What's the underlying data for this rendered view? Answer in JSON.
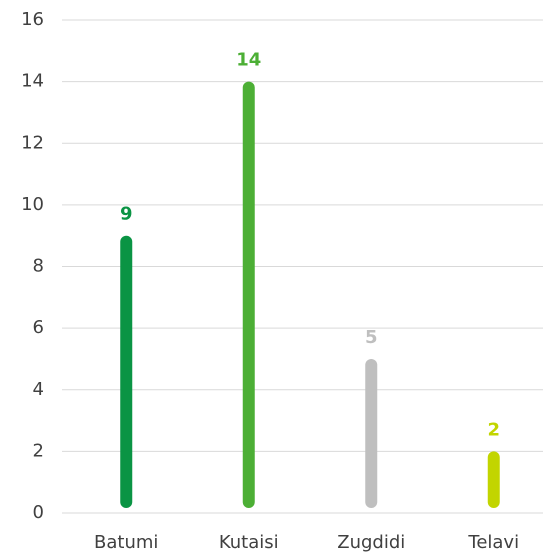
{
  "chart_data": {
    "type": "bar",
    "categories": [
      "Batumi",
      "Kutaisi",
      "Zugdidi",
      "Telavi"
    ],
    "values": [
      9,
      14,
      5,
      2
    ],
    "colors": [
      "#0a9444",
      "#4caf35",
      "#bfbfbf",
      "#c2d500"
    ],
    "ylim": [
      0,
      16
    ],
    "yticks": [
      0,
      2,
      4,
      6,
      8,
      10,
      12,
      14,
      16
    ],
    "grid": true
  }
}
